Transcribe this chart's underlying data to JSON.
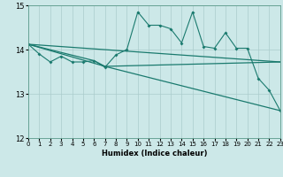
{
  "xlabel": "Humidex (Indice chaleur)",
  "bg_color": "#cce8e8",
  "line_color": "#1a7a6e",
  "grid_color": "#aacccc",
  "ylim": [
    12,
    15
  ],
  "xlim": [
    0,
    23
  ],
  "yticks": [
    12,
    13,
    14,
    15
  ],
  "xticks": [
    0,
    1,
    2,
    3,
    4,
    5,
    6,
    7,
    8,
    9,
    10,
    11,
    12,
    13,
    14,
    15,
    16,
    17,
    18,
    19,
    20,
    21,
    22,
    23
  ],
  "series_main": [
    [
      0,
      14.12
    ],
    [
      1,
      13.9
    ],
    [
      2,
      13.72
    ],
    [
      3,
      13.85
    ],
    [
      4,
      13.72
    ],
    [
      5,
      13.72
    ],
    [
      6,
      13.75
    ],
    [
      7,
      13.6
    ],
    [
      8,
      13.88
    ],
    [
      9,
      14.0
    ],
    [
      10,
      14.85
    ],
    [
      11,
      14.55
    ],
    [
      12,
      14.55
    ],
    [
      13,
      14.47
    ],
    [
      14,
      14.15
    ],
    [
      15,
      14.85
    ],
    [
      16,
      14.07
    ],
    [
      17,
      14.03
    ],
    [
      18,
      14.38
    ],
    [
      19,
      14.03
    ],
    [
      20,
      14.03
    ],
    [
      21,
      13.35
    ],
    [
      22,
      13.08
    ],
    [
      23,
      12.62
    ]
  ],
  "series_flat": [
    [
      0,
      14.12
    ],
    [
      23,
      13.72
    ]
  ],
  "series_mid": [
    [
      0,
      14.12
    ],
    [
      6,
      13.75
    ],
    [
      7,
      13.62
    ],
    [
      23,
      13.72
    ]
  ],
  "series_decline": [
    [
      0,
      14.12
    ],
    [
      7,
      13.62
    ],
    [
      23,
      12.62
    ]
  ]
}
